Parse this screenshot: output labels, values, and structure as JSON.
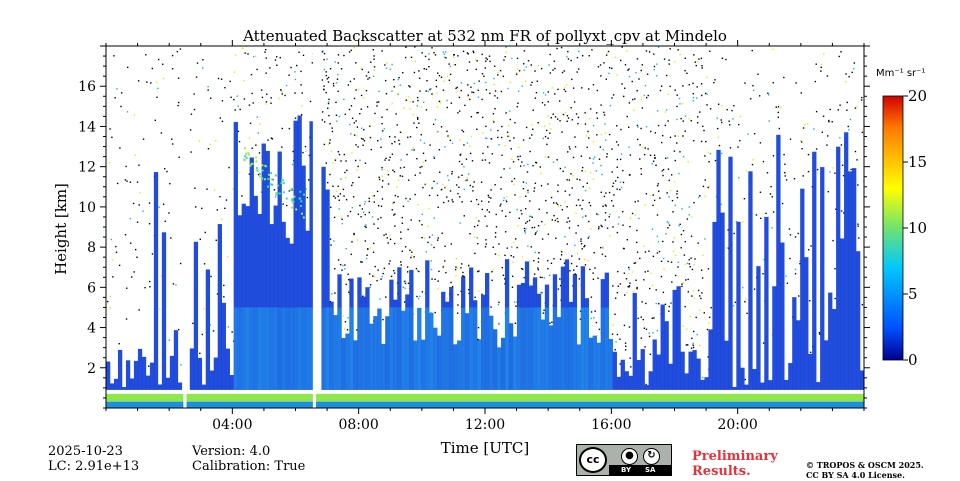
{
  "chart_data": {
    "type": "heatmap",
    "title": "Attenuated Backscatter at 532 nm FR of pollyxt_cpv at Mindelo",
    "xlabel": "Time [UTC]",
    "ylabel": "Height [km]",
    "x_range_hours": [
      0,
      24
    ],
    "ylim": [
      0,
      18
    ],
    "x_ticks": [
      "04:00",
      "08:00",
      "12:00",
      "16:00",
      "20:00"
    ],
    "x_tick_hours": [
      4,
      8,
      12,
      16,
      20
    ],
    "y_ticks": [
      2,
      4,
      6,
      8,
      10,
      12,
      14,
      16
    ],
    "colorbar": {
      "unit_label": "Mm⁻¹ sr⁻¹",
      "min": 0,
      "max": 20,
      "ticks": [
        0,
        5,
        10,
        15,
        20
      ],
      "colormap": "jet-like"
    },
    "colors": {
      "low": "#0a3ad8",
      "mid": "#21a8f0",
      "high": "#f5e400",
      "max": "#ff2a00",
      "noise": "#000000"
    },
    "features": {
      "data_gaps_hours": [
        2.5,
        6.6
      ],
      "boundary_layer_top_km": 0.7,
      "elevated_aerosol_layer_km": [
        10,
        12.5
      ],
      "elevated_layer_time_hours": [
        4.3,
        6.3
      ],
      "cloud_signal_km": [
        1,
        6
      ]
    }
  },
  "footer": {
    "date": "2025-10-23",
    "lc": "LC: 2.91e+13",
    "version": "Version: 4.0",
    "calibration": "Calibration: True",
    "license_badge": {
      "cc": "cc",
      "by": "BY",
      "sa": "SA"
    },
    "preliminary_line1": "Preliminary",
    "preliminary_line2": "Results.",
    "copyright_line1": "© TROPOS & OSCM 2025.",
    "copyright_line2": "CC BY SA 4.0 License."
  }
}
